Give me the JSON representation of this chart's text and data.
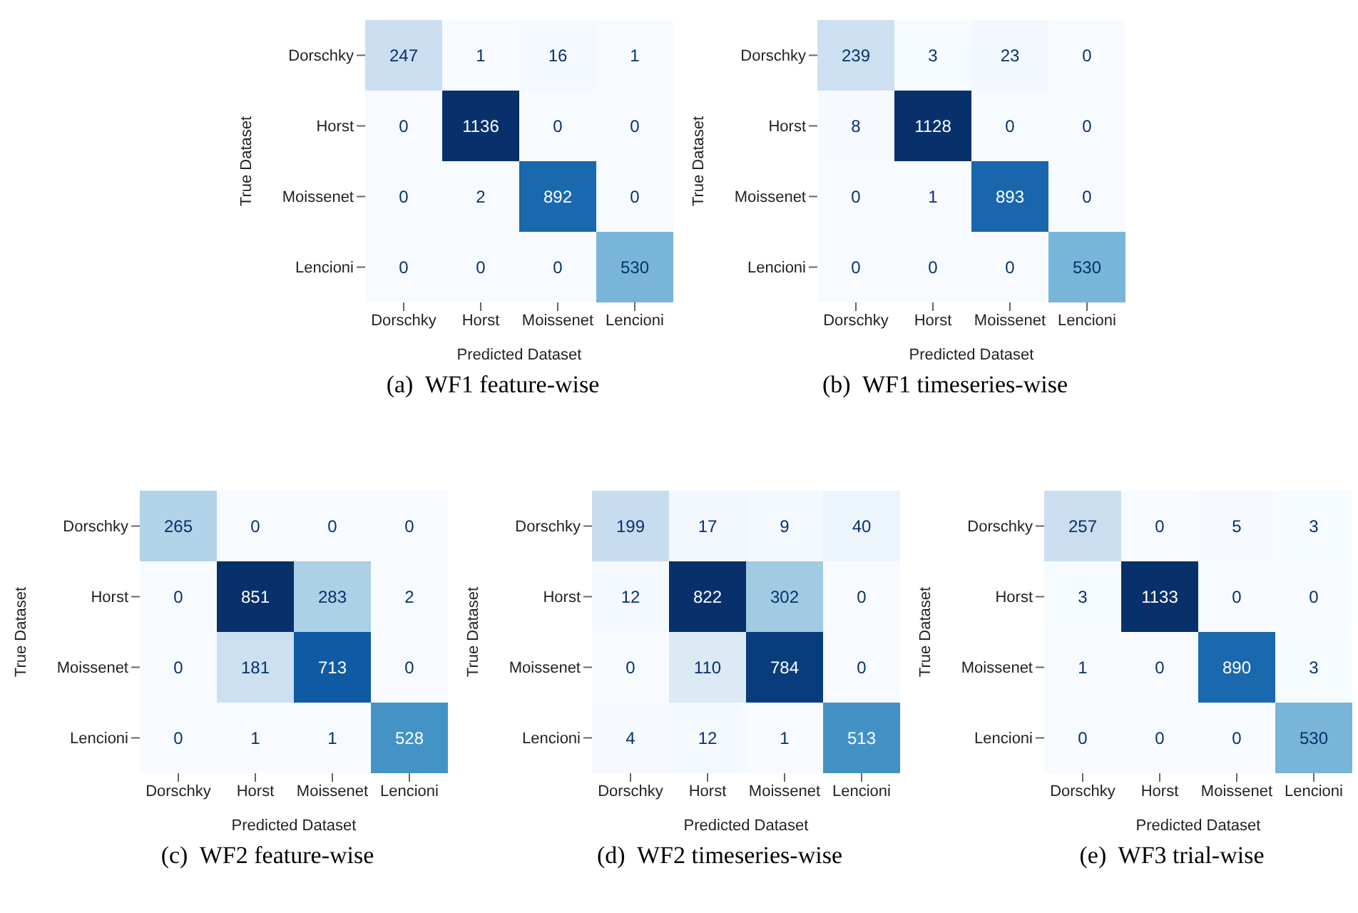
{
  "chart_data": [
    {
      "type": "heatmap",
      "data_labels": true,
      "title": "(a)  WF1 feature-wise",
      "xlabel": "Predicted Dataset",
      "ylabel": "True Dataset",
      "categories": [
        "Dorschky",
        "Horst",
        "Moissenet",
        "Lencioni"
      ],
      "y_categories": [
        "Dorschky",
        "Horst",
        "Moissenet",
        "Lencioni"
      ],
      "cells": [
        [
          247,
          1,
          16,
          1
        ],
        [
          0,
          1136,
          0,
          0
        ],
        [
          0,
          2,
          892,
          0
        ],
        [
          0,
          0,
          0,
          530
        ]
      ]
    },
    {
      "type": "heatmap",
      "data_labels": true,
      "title": "(b)  WF1 timeseries-wise",
      "xlabel": "Predicted Dataset",
      "ylabel": "True Dataset",
      "categories": [
        "Dorschky",
        "Horst",
        "Moissenet",
        "Lencioni"
      ],
      "y_categories": [
        "Dorschky",
        "Horst",
        "Moissenet",
        "Lencioni"
      ],
      "cells": [
        [
          239,
          3,
          23,
          0
        ],
        [
          8,
          1128,
          0,
          0
        ],
        [
          0,
          1,
          893,
          0
        ],
        [
          0,
          0,
          0,
          530
        ]
      ]
    },
    {
      "type": "heatmap",
      "data_labels": true,
      "title": "(c)  WF2 feature-wise",
      "xlabel": "Predicted Dataset",
      "ylabel": "True Dataset",
      "categories": [
        "Dorschky",
        "Horst",
        "Moissenet",
        "Lencioni"
      ],
      "y_categories": [
        "Dorschky",
        "Horst",
        "Moissenet",
        "Lencioni"
      ],
      "cells": [
        [
          265,
          0,
          0,
          0
        ],
        [
          0,
          851,
          283,
          2
        ],
        [
          0,
          181,
          713,
          0
        ],
        [
          0,
          1,
          1,
          528
        ]
      ]
    },
    {
      "type": "heatmap",
      "data_labels": true,
      "title": "(d)  WF2 timeseries-wise",
      "xlabel": "Predicted Dataset",
      "ylabel": "True Dataset",
      "categories": [
        "Dorschky",
        "Horst",
        "Moissenet",
        "Lencioni"
      ],
      "y_categories": [
        "Dorschky",
        "Horst",
        "Moissenet",
        "Lencioni"
      ],
      "cells": [
        [
          199,
          17,
          9,
          40
        ],
        [
          12,
          822,
          302,
          0
        ],
        [
          0,
          110,
          784,
          0
        ],
        [
          4,
          12,
          1,
          513
        ]
      ]
    },
    {
      "type": "heatmap",
      "data_labels": true,
      "title": "(e)  WF3 trial-wise",
      "xlabel": "Predicted Dataset",
      "ylabel": "True Dataset",
      "categories": [
        "Dorschky",
        "Horst",
        "Moissenet",
        "Lencioni"
      ],
      "y_categories": [
        "Dorschky",
        "Horst",
        "Moissenet",
        "Lencioni"
      ],
      "cells": [
        [
          257,
          0,
          5,
          3
        ],
        [
          3,
          1133,
          0,
          0
        ],
        [
          1,
          0,
          890,
          3
        ],
        [
          0,
          0,
          0,
          530
        ]
      ]
    }
  ]
}
